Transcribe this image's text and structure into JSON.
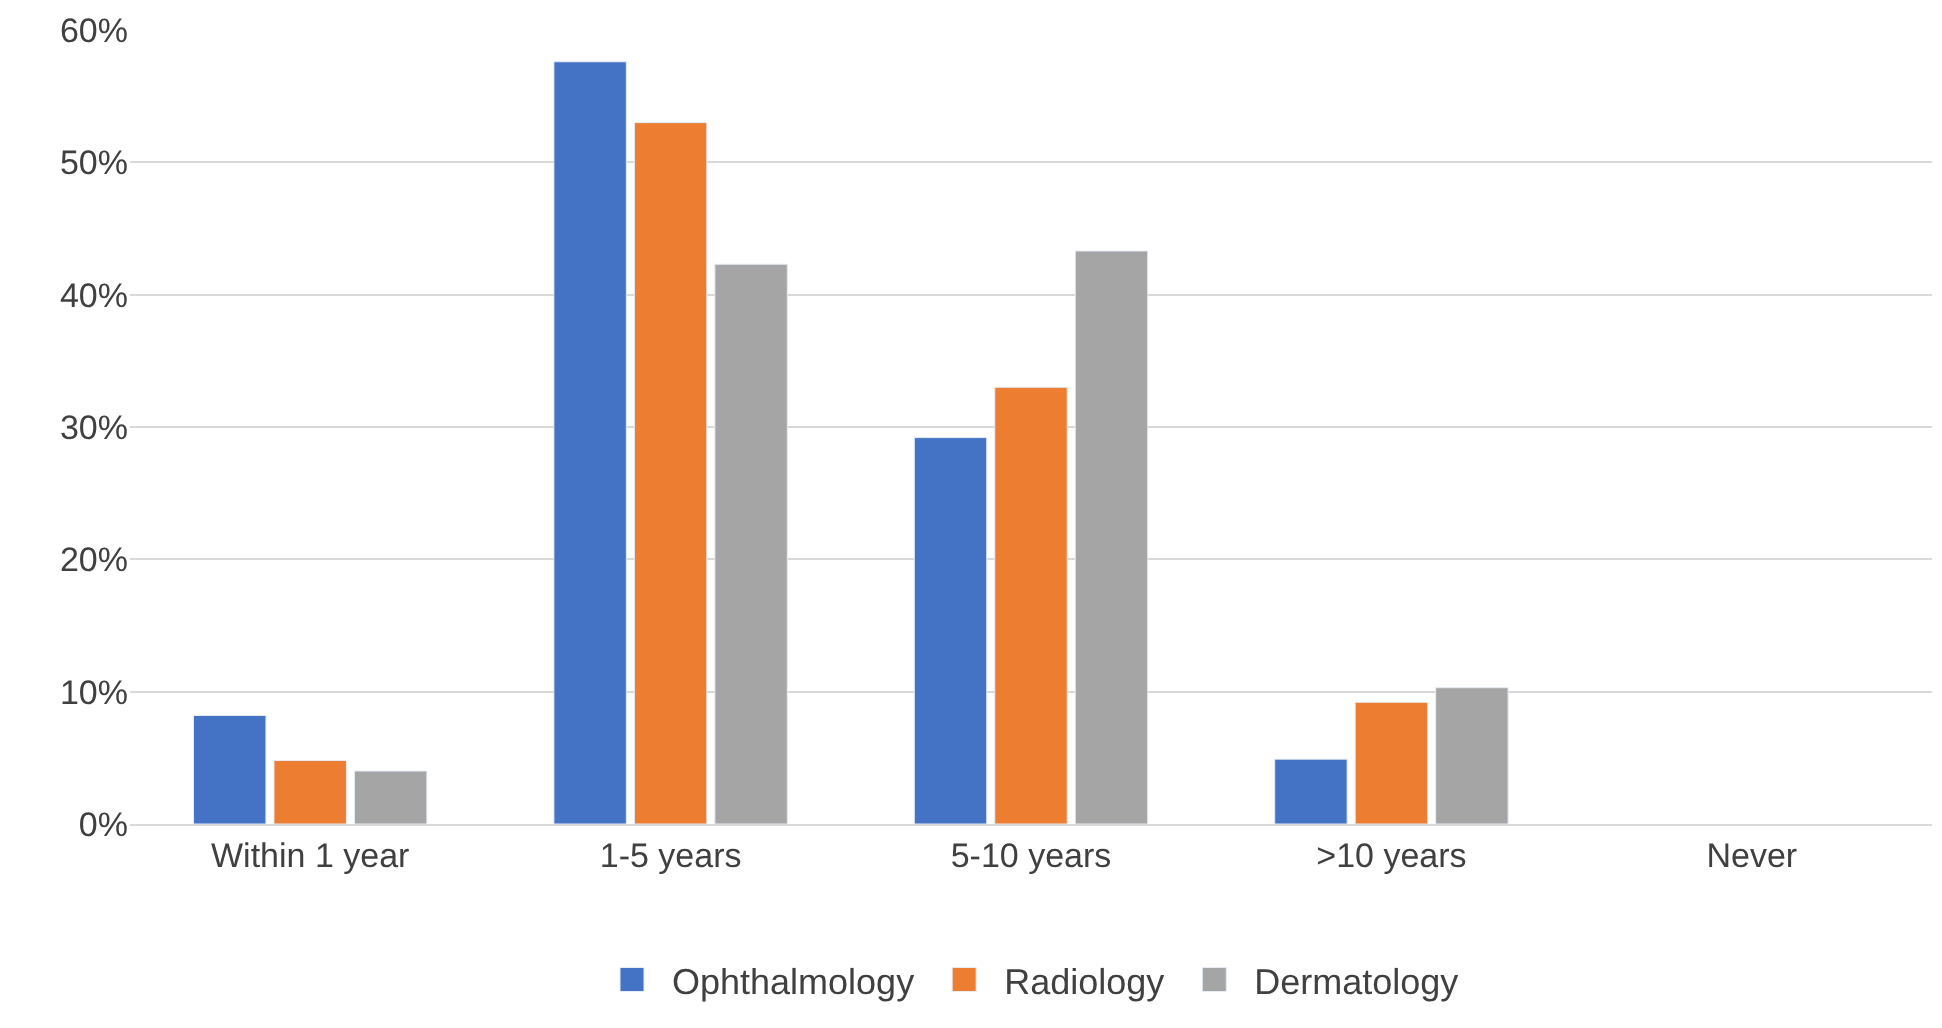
{
  "chart_data": {
    "type": "bar",
    "categories": [
      "Within 1 year",
      "1-5 years",
      "5-10 years",
      ">10 years",
      "Never"
    ],
    "series": [
      {
        "name": "Ophthalmology",
        "color": "#4472c4",
        "values": [
          8.2,
          57.6,
          29.2,
          4.9,
          null
        ]
      },
      {
        "name": "Radiology",
        "color": "#ed7d31",
        "values": [
          4.8,
          53.0,
          33.0,
          9.2,
          null
        ]
      },
      {
        "name": "Dermatology",
        "color": "#a5a5a5",
        "values": [
          4.0,
          42.3,
          43.3,
          10.3,
          null
        ]
      }
    ],
    "ylim": [
      0,
      60
    ],
    "yticks": [
      {
        "value": 0,
        "label": "0%"
      },
      {
        "value": 10,
        "label": "10%"
      },
      {
        "value": 20,
        "label": "20%"
      },
      {
        "value": 30,
        "label": "30%"
      },
      {
        "value": 40,
        "label": "40%"
      },
      {
        "value": 50,
        "label": "50%"
      },
      {
        "value": 60,
        "label": "60%"
      }
    ],
    "grid": "y",
    "legend": "bottom"
  }
}
